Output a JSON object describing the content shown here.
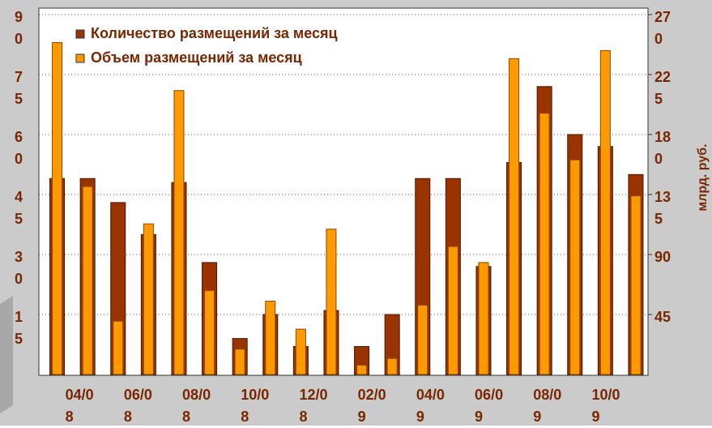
{
  "chart_data": {
    "type": "bar",
    "categories": [
      null,
      "04/08",
      null,
      "06/08",
      null,
      "08/08",
      null,
      "10/08",
      null,
      "12/08",
      null,
      "02/09",
      null,
      "04/09",
      null,
      "06/09",
      null,
      "08/09",
      null,
      "10/09"
    ],
    "series": [
      {
        "name": "Количество размещений за месяц",
        "color": "#993300",
        "values": [
          49,
          49,
          43,
          35,
          48,
          28,
          9,
          15,
          7,
          16,
          7,
          15,
          49,
          49,
          27,
          53,
          72,
          60,
          57,
          50
        ]
      },
      {
        "name": "Объем размещений за месяц",
        "color": "#ff9900",
        "axis": "y2",
        "values": [
          249,
          141,
          40,
          113,
          213,
          63,
          19,
          55,
          34,
          109,
          7,
          12,
          52,
          96,
          84,
          237,
          196,
          161,
          243,
          134
        ]
      }
    ],
    "ylim": [
      0,
      90
    ],
    "yticks": [
      15,
      30,
      45,
      60,
      75,
      90
    ],
    "y2lim": [
      0,
      270
    ],
    "y2ticks": [
      45,
      90,
      135,
      180,
      225,
      270
    ],
    "y2label": "млрд. руб.",
    "grid": true,
    "legend": "upper left"
  }
}
